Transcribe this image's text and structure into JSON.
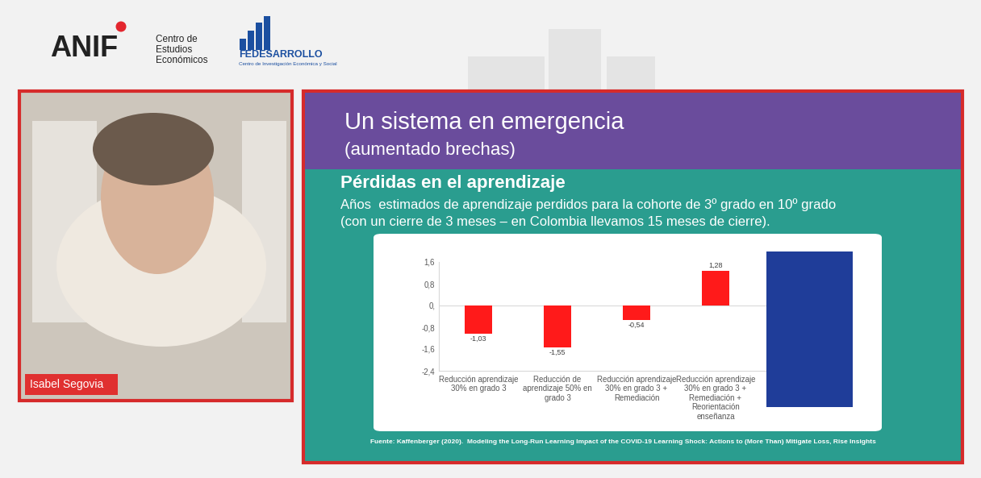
{
  "header": {
    "logo_left": "ANIF",
    "logo_left_caption": [
      "Centro de",
      "Estudios",
      "Económicos"
    ],
    "logo_right": "FEDESARROLLO",
    "logo_right_caption": "Centro de Investigación Económica y Social"
  },
  "speaker": {
    "name": "Isabel Segovia"
  },
  "slide": {
    "title": "Un sistema en emergencia",
    "subtitle": "(aumentado brechas)",
    "heading": "Pérdidas en el aprendizaje",
    "description": [
      "Años  estimados de aprendizaje perdidos para la cohorte de 3º grado en 10º grado",
      "(con un cierre de 3 meses – en Colombia llevamos 15 meses de cierre)."
    ],
    "source": "Fuente: Kaffenberger (2020).  Modeling the Long-Run Learning Impact of the COVID-19 Learning Shock: Actions to (More Than) Mitigate Loss, Rise Insights"
  },
  "chart_data": {
    "type": "bar",
    "categories": [
      "Reducción aprendizaje 30% en grado 3",
      "Reducción de aprendizaje 50% en grado 3",
      "Reducción aprendizaje 30% en grado 3 + Remediación",
      "Reducción aprendizaje 30% en grado 3 + Remediación + Reorientación enseñanza",
      null
    ],
    "values": [
      -1.03,
      -1.55,
      -0.54,
      1.28,
      null
    ],
    "value_labels": [
      "-1,03",
      "-1,55",
      "-0,54",
      "1,28",
      null
    ],
    "color": "#ff1a1a",
    "ylim": [
      -2.4,
      1.6
    ],
    "yticks": [
      {
        "value": 1.6,
        "label": "1,6"
      },
      {
        "value": 0.8,
        "label": "0,8"
      },
      {
        "value": 0,
        "label": "0,"
      },
      {
        "value": -0.8,
        "label": "-0,8"
      },
      {
        "value": -1.6,
        "label": "-1,6"
      },
      {
        "value": -2.4,
        "label": "-2,4"
      }
    ],
    "grid": false,
    "data_labels": true
  }
}
